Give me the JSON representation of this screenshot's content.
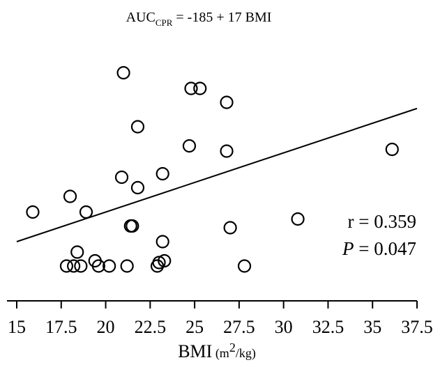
{
  "chart_data": {
    "type": "scatter",
    "title": {
      "prefix": "AUC",
      "subscript": "CPR",
      "rest": " = -185 + 17  BMI"
    },
    "xlabel": {
      "main": "BMI",
      "unit_prefix": " (m",
      "unit_sup": "2",
      "unit_suffix": "/kg)"
    },
    "xlim": [
      15,
      37.5
    ],
    "xticks": [
      15,
      17.5,
      20,
      22.5,
      25,
      27.5,
      30,
      32.5,
      35,
      37.5
    ],
    "xtick_labels": [
      "15",
      "17.5",
      "20",
      "22.5",
      "25",
      "27.5",
      "30",
      "32.5",
      "35",
      "37.5"
    ],
    "ylim": [
      0,
      640
    ],
    "y_axis_visible": false,
    "regression": {
      "intercept": -185,
      "slope": 17
    },
    "annotations": {
      "r_label": "r = 0.359",
      "p_italic": "P",
      "p_rest": " = 0.047"
    },
    "points": [
      {
        "x": 21.0,
        "y": 555
      },
      {
        "x": 24.8,
        "y": 510
      },
      {
        "x": 25.3,
        "y": 510
      },
      {
        "x": 26.8,
        "y": 470
      },
      {
        "x": 21.8,
        "y": 400
      },
      {
        "x": 24.7,
        "y": 345
      },
      {
        "x": 26.8,
        "y": 330
      },
      {
        "x": 36.1,
        "y": 335
      },
      {
        "x": 23.2,
        "y": 265
      },
      {
        "x": 20.9,
        "y": 255
      },
      {
        "x": 21.8,
        "y": 225
      },
      {
        "x": 18.0,
        "y": 200
      },
      {
        "x": 15.9,
        "y": 155
      },
      {
        "x": 18.9,
        "y": 155
      },
      {
        "x": 30.8,
        "y": 135
      },
      {
        "x": 21.4,
        "y": 115
      },
      {
        "x": 21.5,
        "y": 115
      },
      {
        "x": 27.0,
        "y": 110
      },
      {
        "x": 23.2,
        "y": 70
      },
      {
        "x": 18.4,
        "y": 40
      },
      {
        "x": 19.4,
        "y": 15
      },
      {
        "x": 23.0,
        "y": 10
      },
      {
        "x": 23.3,
        "y": 15
      },
      {
        "x": 17.8,
        "y": 0
      },
      {
        "x": 18.2,
        "y": 0
      },
      {
        "x": 18.6,
        "y": 0
      },
      {
        "x": 19.6,
        "y": 0
      },
      {
        "x": 20.2,
        "y": 0
      },
      {
        "x": 21.2,
        "y": 0
      },
      {
        "x": 22.9,
        "y": 0
      },
      {
        "x": 27.8,
        "y": 0
      }
    ]
  }
}
